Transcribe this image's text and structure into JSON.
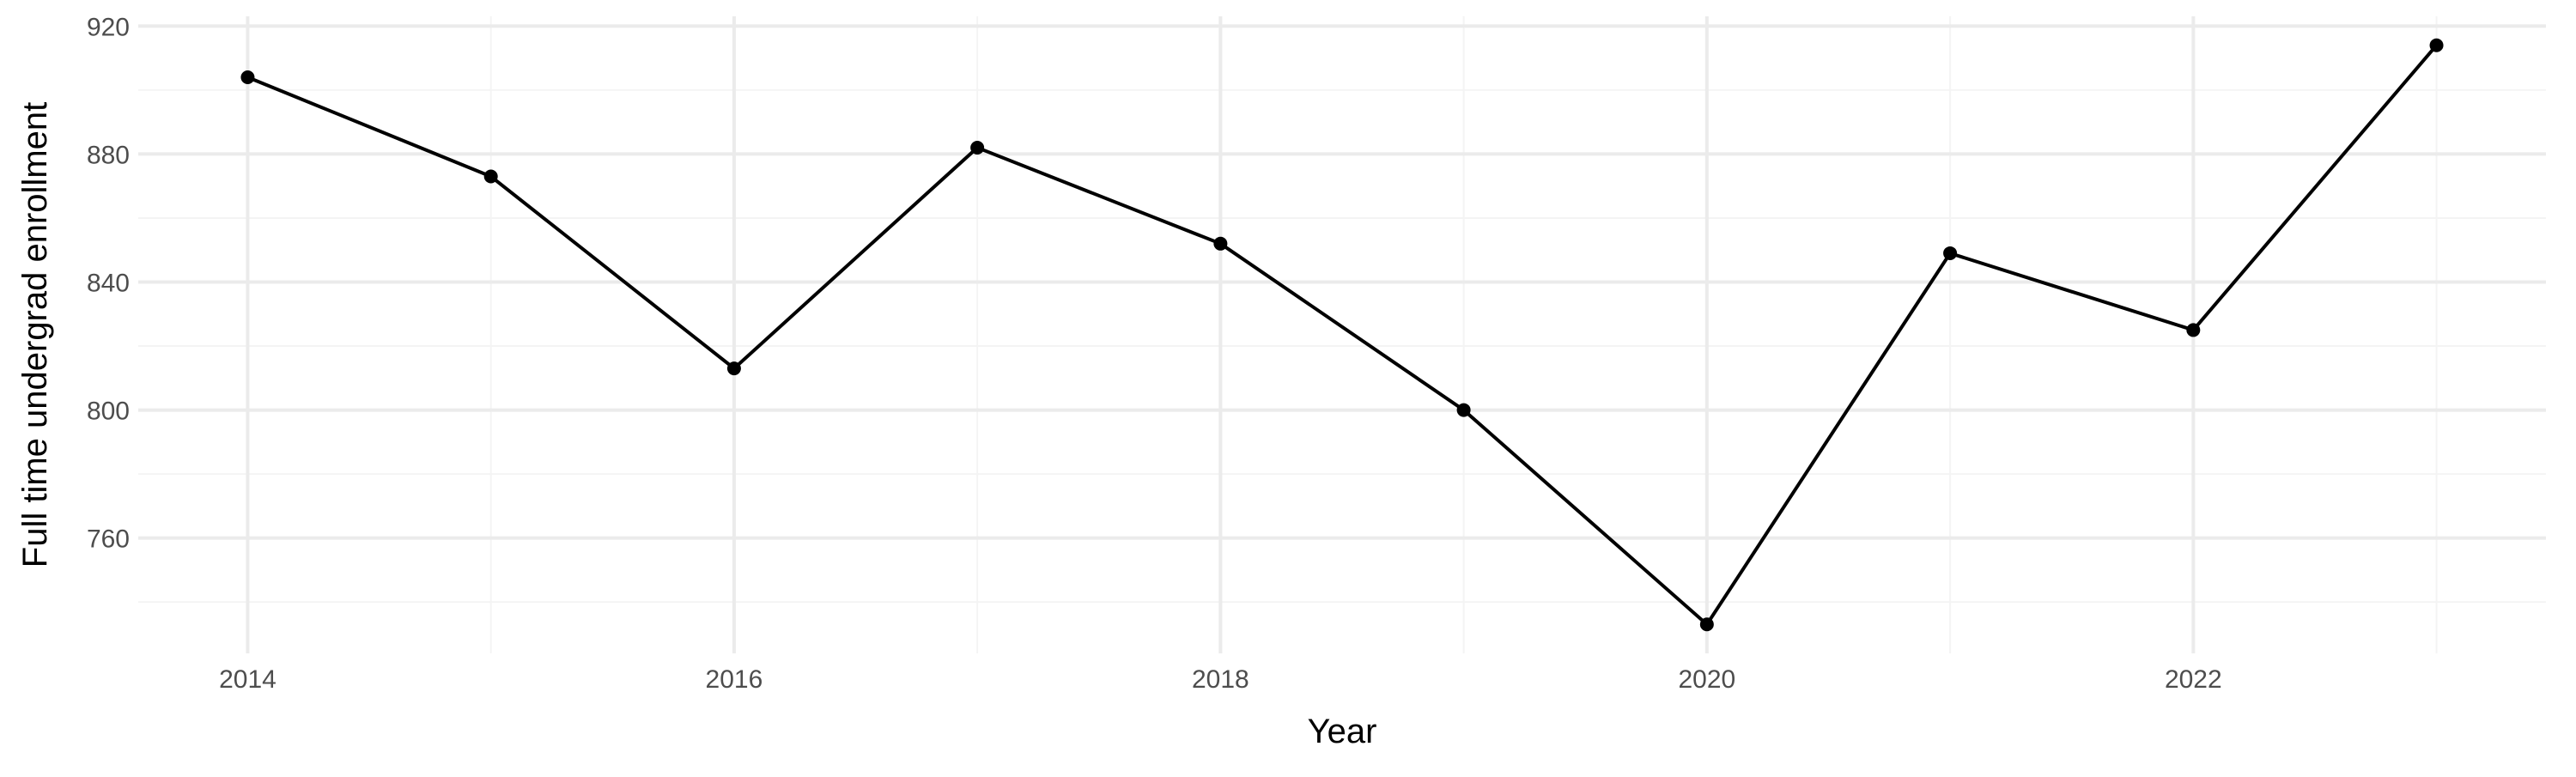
{
  "chart_data": {
    "type": "line",
    "title": "",
    "xlabel": "Year",
    "ylabel": "Full time undergrad enrollment",
    "x": [
      2014,
      2015,
      2016,
      2017,
      2018,
      2019,
      2020,
      2021,
      2022,
      2023
    ],
    "series": [
      {
        "values": [
          904,
          873,
          813,
          882,
          852,
          800,
          733,
          849,
          825,
          914
        ]
      }
    ],
    "xlim": [
      2013.55,
      2023.45
    ],
    "ylim": [
      723.95,
      923.05
    ],
    "x_ticks": [
      2014,
      2016,
      2018,
      2020,
      2022
    ],
    "x_tick_labels": [
      "2014",
      "2016",
      "2018",
      "2020",
      "2022"
    ],
    "y_ticks": [
      760,
      800,
      840,
      880,
      920
    ],
    "y_tick_labels": [
      "760",
      "800",
      "840",
      "880",
      "920"
    ],
    "grid": true,
    "legend": "none",
    "colors": {
      "line": "#000000",
      "points": "#000000",
      "grid_major": "#ebebeb",
      "grid_minor": "#f4f4f4",
      "tick_text": "#4d4d4d"
    }
  }
}
